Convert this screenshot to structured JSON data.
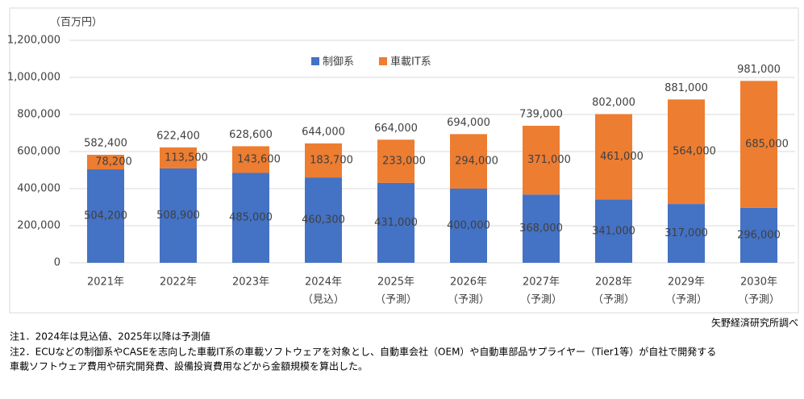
{
  "chart_data": {
    "type": "stacked_bar",
    "unit_label": "（百万円）",
    "categories": [
      [
        "2021年"
      ],
      [
        "2022年"
      ],
      [
        "2023年"
      ],
      [
        "2024年",
        "（見込）"
      ],
      [
        "2025年",
        "（予測）"
      ],
      [
        "2026年",
        "（予測）"
      ],
      [
        "2027年",
        "（予測）"
      ],
      [
        "2028年",
        "（予測）"
      ],
      [
        "2029年",
        "（予測）"
      ],
      [
        "2030年",
        "（予測）"
      ]
    ],
    "series": [
      {
        "name": "制御系",
        "color": "#4472c4",
        "values": [
          504200,
          508900,
          485000,
          460300,
          431000,
          400000,
          368000,
          341000,
          317000,
          296000
        ],
        "value_labels": [
          "504,200",
          "508,900",
          "485,000",
          "460,300",
          "431,000",
          "400,000",
          "368,000",
          "341,000",
          "317,000",
          "296,000"
        ]
      },
      {
        "name": "車載IT系",
        "color": "#ed7d31",
        "values": [
          78200,
          113500,
          143600,
          183700,
          233000,
          294000,
          371000,
          461000,
          564000,
          685000
        ],
        "value_labels": [
          "78,200",
          "113,500",
          "143,600",
          "183,700",
          "233,000",
          "294,000",
          "371,000",
          "461,000",
          "564,000",
          "685,000"
        ]
      }
    ],
    "totals": {
      "values": [
        582400,
        622400,
        628600,
        644000,
        664000,
        694000,
        739000,
        802000,
        881000,
        981000
      ],
      "value_labels": [
        "582,400",
        "622,400",
        "628,600",
        "644,000",
        "664,000",
        "694,000",
        "739,000",
        "802,000",
        "881,000",
        "981,000"
      ]
    },
    "ylim": [
      0,
      1200000
    ],
    "yticks": [
      0,
      {
        "value": 200000,
        "label": "200,000"
      },
      {
        "value": 400000,
        "label": "400,000"
      },
      {
        "value": 600000,
        "label": "600,000"
      },
      {
        "value": 800000,
        "label": "800,000"
      },
      {
        "value": 1000000,
        "label": "1,000,000"
      },
      {
        "value": 1200000,
        "label": "1,200,000"
      }
    ],
    "grid": true,
    "source": "矢野経済研究所調べ",
    "notes": [
      "注1．2024年は見込値、2025年以降は予測値",
      "注2．ECUなどの制御系やCASEを志向した車載IT系の車載ソフトウェアを対象とし、自動車会社（OEM）や自動車部品サプライヤー（Tier1等）が自社で開発する",
      "車載ソフトウェア費用や研究開発費、設備投資費用などから金額規模を算出した。"
    ]
  }
}
